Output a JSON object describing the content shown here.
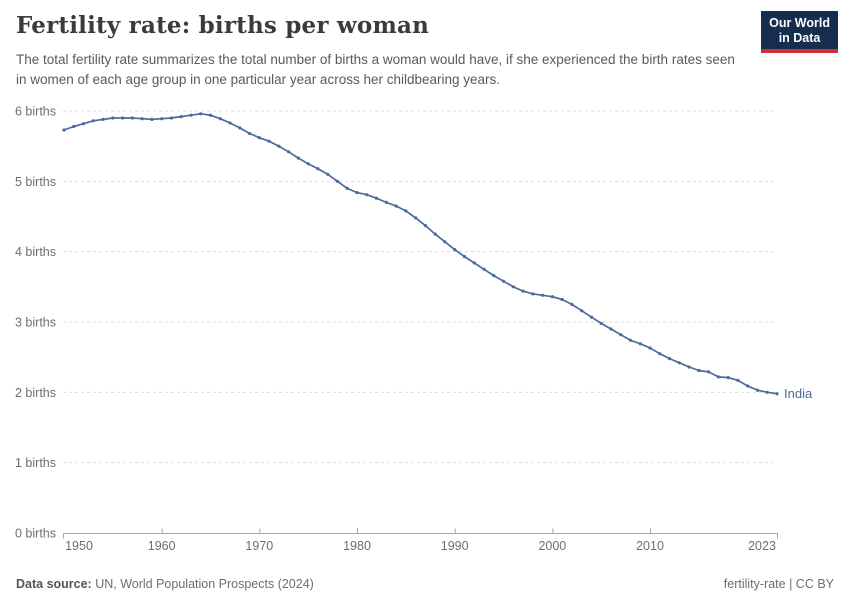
{
  "header": {
    "title": "Fertility rate: births per woman",
    "subtitle": "The total fertility rate summarizes the total number of births a woman would have, if she experienced the birth rates seen in women of each age group in one particular year across her childbearing years.",
    "logo": {
      "line1": "Our World",
      "line2": "in Data",
      "bg_color": "#152d4e",
      "accent_color": "#cc3232"
    }
  },
  "chart_data": {
    "type": "line",
    "title": "Fertility rate: births per woman",
    "x": [
      1950,
      1951,
      1952,
      1953,
      1954,
      1955,
      1956,
      1957,
      1958,
      1959,
      1960,
      1961,
      1962,
      1963,
      1964,
      1965,
      1966,
      1967,
      1968,
      1969,
      1970,
      1971,
      1972,
      1973,
      1974,
      1975,
      1976,
      1977,
      1978,
      1979,
      1980,
      1981,
      1982,
      1983,
      1984,
      1985,
      1986,
      1987,
      1988,
      1989,
      1990,
      1991,
      1992,
      1993,
      1994,
      1995,
      1996,
      1997,
      1998,
      1999,
      2000,
      2001,
      2002,
      2003,
      2004,
      2005,
      2006,
      2007,
      2008,
      2009,
      2010,
      2011,
      2012,
      2013,
      2014,
      2015,
      2016,
      2017,
      2018,
      2019,
      2020,
      2021,
      2022,
      2023
    ],
    "series": [
      {
        "name": "India",
        "color": "#4c6a9c",
        "values": [
          5.73,
          5.78,
          5.82,
          5.86,
          5.88,
          5.9,
          5.9,
          5.9,
          5.89,
          5.88,
          5.89,
          5.9,
          5.92,
          5.94,
          5.96,
          5.94,
          5.89,
          5.83,
          5.76,
          5.68,
          5.62,
          5.57,
          5.5,
          5.42,
          5.33,
          5.25,
          5.18,
          5.1,
          5.0,
          4.9,
          4.84,
          4.81,
          4.76,
          4.7,
          4.65,
          4.58,
          4.48,
          4.37,
          4.25,
          4.14,
          4.03,
          3.93,
          3.84,
          3.75,
          3.66,
          3.58,
          3.5,
          3.44,
          3.4,
          3.38,
          3.36,
          3.32,
          3.25,
          3.16,
          3.07,
          2.98,
          2.9,
          2.82,
          2.74,
          2.69,
          2.63,
          2.55,
          2.48,
          2.42,
          2.36,
          2.31,
          2.29,
          2.22,
          2.21,
          2.17,
          2.09,
          2.03,
          2.0,
          1.98
        ]
      }
    ],
    "xlim": [
      1950,
      2023
    ],
    "ylim": [
      0,
      6
    ],
    "xticks": [
      1950,
      1960,
      1970,
      1980,
      1990,
      2000,
      2010,
      2023
    ],
    "xtick_labels": [
      "1950",
      "1960",
      "1970",
      "1980",
      "1990",
      "2000",
      "2010",
      "2023"
    ],
    "yticks": [
      0,
      1,
      2,
      3,
      4,
      5,
      6
    ],
    "ytick_labels": [
      "0 births",
      "1 births",
      "2 births",
      "3 births",
      "4 births",
      "5 births",
      "6 births"
    ],
    "grid": "horizontal-dashed",
    "grid_color": "#dddddd",
    "axis_color": "#a8a8a8",
    "legend": "end-of-line-label",
    "end_label": "India"
  },
  "footer": {
    "source_label": "Data source:",
    "source_text": " UN, World Population Prospects (2024)",
    "right_text": "fertility-rate | CC BY"
  }
}
